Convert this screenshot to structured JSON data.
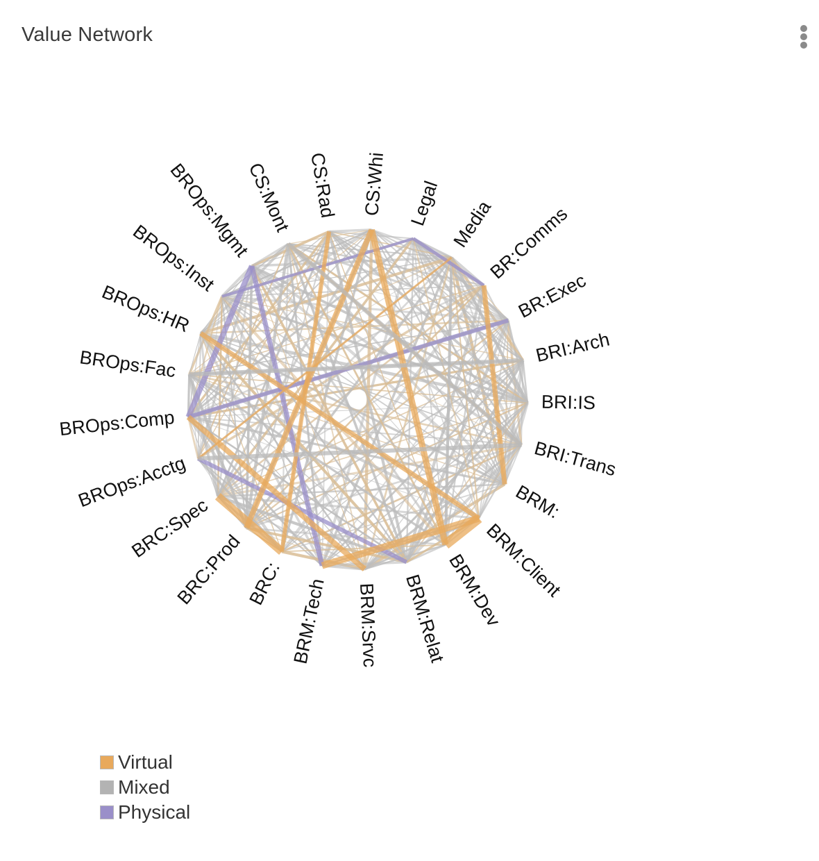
{
  "header": {
    "title": "Value Network",
    "menu_icon": "more-vertical-icon"
  },
  "diagram": {
    "type": "network",
    "nodes": [
      {
        "id": "BRM:",
        "label": "BRM:"
      },
      {
        "id": "BRI:Trans",
        "label": "BRI:Trans"
      },
      {
        "id": "BRI:IS",
        "label": "BRI:IS"
      },
      {
        "id": "BRI:Arch",
        "label": "BRI:Arch"
      },
      {
        "id": "BR:Exec",
        "label": "BR:Exec"
      },
      {
        "id": "BR:Comms",
        "label": "BR:Comms"
      },
      {
        "id": "Media",
        "label": "Media"
      },
      {
        "id": "Legal",
        "label": "Legal"
      },
      {
        "id": "CS:Whi",
        "label": "CS:Whi"
      },
      {
        "id": "CS:Rad",
        "label": "CS:Rad"
      },
      {
        "id": "CS:Mont",
        "label": "CS:Mont"
      },
      {
        "id": "BROps:Mgmt",
        "label": "BROps:Mgmt"
      },
      {
        "id": "BROps:Inst",
        "label": "BROps:Inst"
      },
      {
        "id": "BROps:HR",
        "label": "BROps:HR"
      },
      {
        "id": "BROps:Fac",
        "label": "BROps:Fac"
      },
      {
        "id": "BROps:Comp",
        "label": "BROps:Comp"
      },
      {
        "id": "BROps:Acctg",
        "label": "BROps:Acctg"
      },
      {
        "id": "BRC:Spec",
        "label": "BRC:Spec"
      },
      {
        "id": "BRC:Prod",
        "label": "BRC:Prod"
      },
      {
        "id": "BRC:",
        "label": "BRC:"
      },
      {
        "id": "BRM:Tech",
        "label": "BRM:Tech"
      },
      {
        "id": "BRM:Srvc",
        "label": "BRM:Srvc"
      },
      {
        "id": "BRM:Relat",
        "label": "BRM:Relat"
      },
      {
        "id": "BRM:Dev",
        "label": "BRM:Dev"
      },
      {
        "id": "BRM:Client",
        "label": "BRM:Client"
      }
    ],
    "highlighted_links": [
      {
        "source": "Legal",
        "target": "BR:Comms",
        "type": "Physical",
        "weight": 5
      },
      {
        "source": "BR:Exec",
        "target": "BROps:Comp",
        "type": "Physical",
        "weight": 6
      },
      {
        "source": "BROps:Mgmt",
        "target": "BROps:Comp",
        "type": "Physical",
        "weight": 8
      },
      {
        "source": "BROps:Acctg",
        "target": "BRM:Relat",
        "type": "Physical",
        "weight": 6
      },
      {
        "source": "BROps:Mgmt",
        "target": "BRM:Tech",
        "type": "Physical",
        "weight": 7
      },
      {
        "source": "Legal",
        "target": "BROps:Inst",
        "type": "Physical",
        "weight": 4
      },
      {
        "source": "CS:Whi",
        "target": "BRC:Prod",
        "type": "Virtual",
        "weight": 8
      },
      {
        "source": "CS:Whi",
        "target": "BRM:Dev",
        "type": "Virtual",
        "weight": 9
      },
      {
        "source": "BRM:",
        "target": "BR:Comms",
        "type": "Virtual",
        "weight": 7
      },
      {
        "source": "BRC:Spec",
        "target": "BRC:",
        "type": "Virtual",
        "weight": 12
      },
      {
        "source": "BRM:Tech",
        "target": "BRM:Client",
        "type": "Virtual",
        "weight": 10
      },
      {
        "source": "BRM:Dev",
        "target": "BRM:Client",
        "type": "Virtual",
        "weight": 14
      },
      {
        "source": "BROps:Comp",
        "target": "BRM:Srvc",
        "type": "Virtual",
        "weight": 8
      },
      {
        "source": "BROps:HR",
        "target": "BRM:Client",
        "type": "Virtual",
        "weight": 7
      },
      {
        "source": "CS:Rad",
        "target": "BRC:",
        "type": "Virtual",
        "weight": 6
      },
      {
        "source": "Media",
        "target": "BROps:Acctg",
        "type": "Virtual",
        "weight": 3
      },
      {
        "source": "CS:Mont",
        "target": "BRI:Trans",
        "type": "Mixed",
        "weight": 6
      },
      {
        "source": "BROps:Fac",
        "target": "BRI:Arch",
        "type": "Mixed",
        "weight": 6
      },
      {
        "source": "BROps:Acctg",
        "target": "BRI:Trans",
        "type": "Mixed",
        "weight": 6
      }
    ]
  },
  "legend": {
    "items": [
      {
        "label": "Virtual",
        "color": "#e8a95c"
      },
      {
        "label": "Mixed",
        "color": "#b3b3b3"
      },
      {
        "label": "Physical",
        "color": "#9a8fc9"
      }
    ]
  },
  "colors": {
    "virtual": "#e8a95c",
    "mixed": "#b3b3b3",
    "physical": "#9a8fc9",
    "label": "#111111"
  }
}
